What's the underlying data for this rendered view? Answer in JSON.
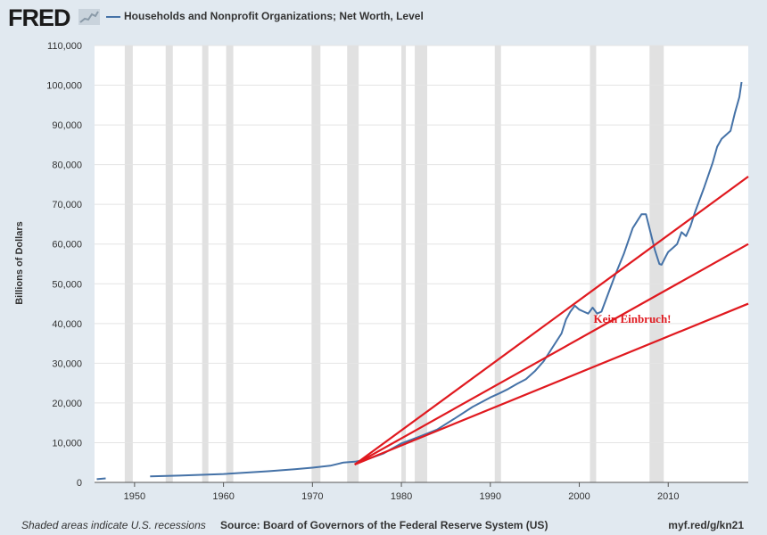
{
  "header": {
    "logo_text": "FRED",
    "title": "Households and Nonprofit Organizations; Net Worth, Level"
  },
  "footer": {
    "recession_note": "Shaded areas indicate U.S. recessions",
    "source": "Source: Board of Governors of the Federal Reserve System (US)",
    "url": "myf.red/g/kn21"
  },
  "colors": {
    "background": "#e1e9f0",
    "series": "#4572a7",
    "trend": "#e0191f",
    "recession": "#e1e1e1"
  },
  "chart_data": {
    "type": "line",
    "title": "Households and Nonprofit Organizations; Net Worth, Level",
    "xlabel": "",
    "ylabel": "Billions of Dollars",
    "xlim": [
      1945.5,
      2019.0
    ],
    "ylim": [
      0,
      110000
    ],
    "x_ticks": [
      1950,
      1960,
      1970,
      1980,
      1990,
      2000,
      2010
    ],
    "y_ticks": [
      0,
      10000,
      20000,
      30000,
      40000,
      50000,
      60000,
      70000,
      80000,
      90000,
      100000,
      110000
    ],
    "y_tick_labels": [
      "0",
      "10,000",
      "20,000",
      "30,000",
      "40,000",
      "50,000",
      "60,000",
      "70,000",
      "80,000",
      "90,000",
      "100,000",
      "110,000"
    ],
    "grid": true,
    "recessions": [
      [
        1948.9,
        1949.8
      ],
      [
        1953.5,
        1954.3
      ],
      [
        1957.6,
        1958.3
      ],
      [
        1960.3,
        1961.1
      ],
      [
        1969.9,
        1970.9
      ],
      [
        1973.9,
        1975.2
      ],
      [
        1980.0,
        1980.5
      ],
      [
        1981.5,
        1982.9
      ],
      [
        1990.5,
        1991.2
      ],
      [
        2001.2,
        2001.9
      ],
      [
        2007.9,
        2009.5
      ]
    ],
    "series": [
      {
        "name": "Net Worth",
        "segments": [
          {
            "x": [
              1945.75,
              1946.75
            ],
            "y": [
              800,
              1000
            ]
          },
          {
            "x": [
              1951.75,
              1955,
              1960,
              1965,
              1968,
              1970,
              1972,
              1973.5,
              1974.75,
              1976,
              1978,
              1980,
              1982,
              1984,
              1986,
              1988,
              1990,
              1991,
              1992,
              1993,
              1994,
              1995,
              1996,
              1997,
              1998,
              1998.5,
              1999,
              1999.5,
              2000,
              2000.5,
              2001,
              2001.5,
              2002,
              2002.5,
              2003,
              2004,
              2005,
              2006,
              2007,
              2007.5,
              2008,
              2008.5,
              2009,
              2009.25,
              2009.75,
              2010,
              2010.5,
              2011,
              2011.5,
              2012,
              2012.5,
              2013,
              2014,
              2015,
              2015.5,
              2016,
              2017,
              2017.5,
              2018,
              2018.25
            ],
            "y": [
              1500,
              1700,
              2100,
              2800,
              3300,
              3700,
              4200,
              5000,
              5200,
              5700,
              7300,
              9800,
              11500,
              13300,
              16100,
              19000,
              21400,
              22400,
              23500,
              24800,
              26000,
              28000,
              30500,
              34000,
              37500,
              41000,
              43000,
              44500,
              43500,
              43000,
              42500,
              44000,
              42500,
              43000,
              46000,
              52000,
              57500,
              64000,
              67500,
              67500,
              63000,
              58500,
              55000,
              54800,
              57000,
              58000,
              59000,
              60000,
              63000,
              62000,
              64500,
              68000,
              74000,
              80500,
              84500,
              86500,
              88500,
              93000,
              97000,
              100800
            ]
          }
        ]
      }
    ],
    "trend_lines": [
      {
        "x": [
          1974.75,
          2019.0
        ],
        "y": [
          4500,
          77000
        ]
      },
      {
        "x": [
          1974.75,
          2019.0
        ],
        "y": [
          4500,
          60000
        ]
      },
      {
        "x": [
          1974.75,
          2019.0
        ],
        "y": [
          4500,
          45000
        ]
      }
    ],
    "annotations": [
      {
        "text": "Kein Einbruch!",
        "x": 2001.6,
        "y": 40200
      }
    ]
  }
}
